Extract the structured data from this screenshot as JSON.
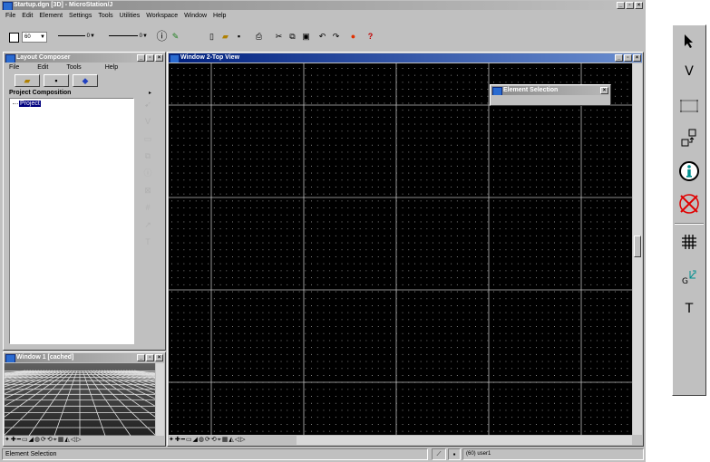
{
  "app": {
    "title": "Startup.dgn [3D] - MicroStation/J",
    "menu": [
      "File",
      "Edit",
      "Element",
      "Settings",
      "Tools",
      "Utilities",
      "Workspace",
      "Window",
      "Help"
    ]
  },
  "toolbar": {
    "level_value": "60",
    "weight_value": "0",
    "style_value": "0",
    "buttons": [
      "info-icon",
      "element-attributes-icon",
      "new-file-icon",
      "open-file-icon",
      "save-icon",
      "print-icon",
      "cut-icon",
      "copy-icon",
      "paste-icon",
      "undo-icon",
      "redo-icon",
      "render-icon",
      "help-icon"
    ]
  },
  "layout_composer": {
    "title": "Layout Composer",
    "menu": [
      "File",
      "Edit",
      "Tools",
      "Help"
    ],
    "panel_title": "Project Composition",
    "tree_item": "Project"
  },
  "window1": {
    "title": "Window 1 [cached]"
  },
  "window2": {
    "title": "Window 2-Top View"
  },
  "element_selection": {
    "title": "Element Selection"
  },
  "status": {
    "text": "Element Selection",
    "right": "(60) user1"
  },
  "side_toolbar": {
    "select_label": "V",
    "text_label": "T",
    "colors": {
      "info": "#009090",
      "delete": "#e00000"
    }
  },
  "colors": {
    "desktop": "#c0c0c0",
    "title_active": "#00207f",
    "title_inactive": "#8a8a8a",
    "canvas": "#000000",
    "selection": "#00007f"
  }
}
